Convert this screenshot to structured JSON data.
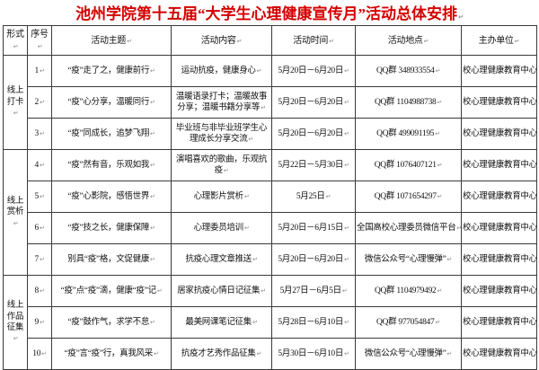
{
  "title": "池州学院第十五届“大学生心理健康宣传月”活动总体安排",
  "colors": {
    "title_red": "#d40000",
    "border": "#3a3a3a",
    "text": "#111111",
    "background": "#ffffff"
  },
  "table": {
    "headers": [
      "形式",
      "序号",
      "活动主题",
      "活动内容",
      "活动时间",
      "活动地点",
      "主办单位"
    ],
    "groups": [
      {
        "label": "线上打卡",
        "span": 3
      },
      {
        "label": "线上赏析",
        "span": 4
      },
      {
        "label": "线上作品征集",
        "span": 3
      }
    ],
    "rows": [
      {
        "no": "1",
        "theme": "“疫”走了之，健康前行",
        "content": "运动抗疫，健康身心",
        "time": "5月20日－6月20日",
        "place": "QQ群 348933554",
        "org": "校心理健康教育中心"
      },
      {
        "no": "2",
        "theme": "“疫”心分享，温暖同行",
        "content": "温暖语录打卡；温暖故事分享；温暖书籍分享等",
        "time": "5月20日－6月20日",
        "place": "QQ群 1104988738",
        "org": "校心理健康教育中心"
      },
      {
        "no": "3",
        "theme": "“疫”同成长，追梦飞翔",
        "content": "毕业班与非毕业班学生心理成长分享交流",
        "time": "5月20日－6月20日",
        "place": "QQ群 499091195",
        "org": "校心理健康教育中心"
      },
      {
        "no": "4",
        "theme": "“疫”然有音，乐观如我",
        "content": "演唱喜欢的歌曲，乐观抗疫",
        "time": "5月22日－5月30日",
        "place": "QQ群 1076407121",
        "org": "校心理健康教育中心"
      },
      {
        "no": "5",
        "theme": "“疫”心影院，感悟世界",
        "content": "心理影片赏析",
        "time": "5月25日",
        "place": "QQ群 1071654297",
        "org": "校心理健康教育中心"
      },
      {
        "no": "6",
        "theme": "“疫”技之长，健康保障",
        "content": "心理委员培训",
        "time": "5月20日－6月15日",
        "place": "全国高校心理委员微信平台",
        "org": "校心理健康教育中心"
      },
      {
        "no": "7",
        "theme": "别具“疫”格，文促健康",
        "content": "抗疫心理文章推送",
        "time": "5月20日－6月20日",
        "place": "微信公众号“心理慢弹”",
        "org": "校心理健康教育中心"
      },
      {
        "no": "8",
        "theme": "“疫”点“疫”滴，健康“疫”记",
        "content": "居家抗疫心情日记征集",
        "time": "5月27日－6月5日",
        "place": "QQ群 1104979492",
        "org": "校心理健康教育中心"
      },
      {
        "no": "9",
        "theme": "“疫”鼓作气，求学不怠",
        "content": "最美网课笔记征集",
        "time": "5月28日－6月10日",
        "place": "QQ群 977054847",
        "org": "校心理健康教育中心"
      },
      {
        "no": "10",
        "theme": "“疫”言“疫”行，真我风采",
        "content": "抗疫才艺秀作品征集",
        "time": "5月30日－6月10日",
        "place": "微信公众号“心理慢弹”",
        "org": "校心理健康教育中心"
      }
    ]
  }
}
